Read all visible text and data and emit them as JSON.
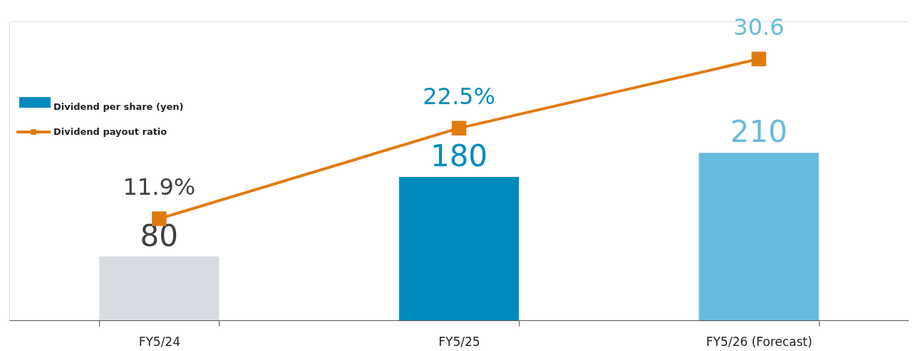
{
  "chart_data": {
    "type": "bar",
    "categories": [
      "FY5/24",
      "FY5/25",
      "FY5/26 (Forecast)"
    ],
    "series": [
      {
        "name": "Dividend per share (yen)",
        "colors": [
          "#d6dce2",
          "#008bbf",
          "#66bbdd"
        ],
        "values": [
          80,
          180,
          210
        ]
      },
      {
        "name": "Dividend payout ratio",
        "type": "line",
        "axis": "y2",
        "color": "#e07b10",
        "values": [
          11.9,
          22.5,
          30.6
        ],
        "value_labels": [
          "11.9%",
          "22.5%",
          "30.6"
        ],
        "marker": "square"
      }
    ],
    "data_labels": true,
    "ylim": [
      0,
      375
    ],
    "y2lim": [
      0,
      35
    ],
    "tick_labels": "x",
    "legend": "top left"
  }
}
